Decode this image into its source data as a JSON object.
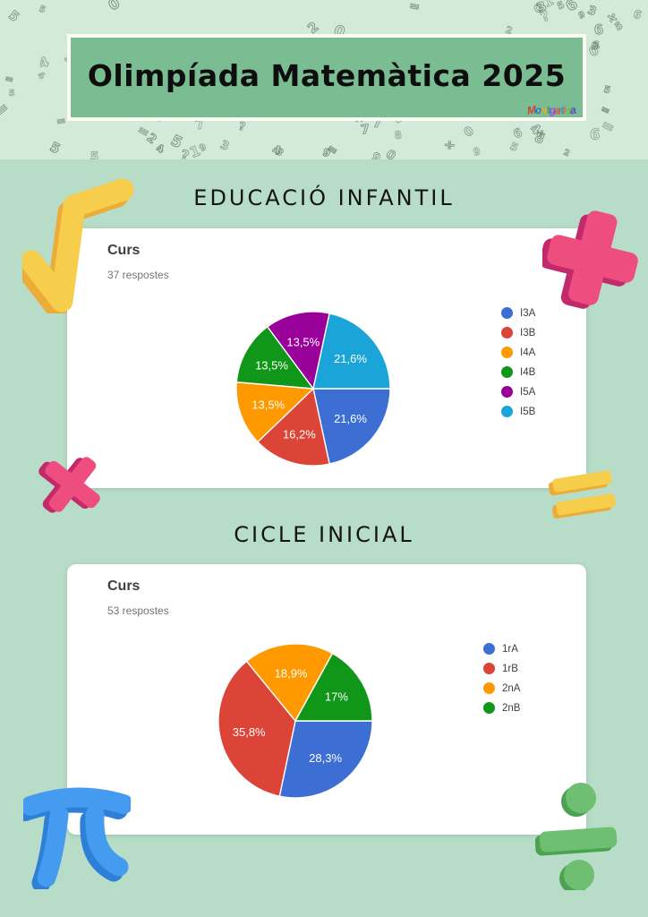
{
  "palette": {
    "page_background": "#b7dcc8",
    "pattern_band_background": "#d3ead8",
    "pattern_ink": "#61766a",
    "banner_green": "#7bbd92",
    "banner_border": "#fcfcf4",
    "card_background": "#ffffff",
    "accent_yellow": "#f7ce4b",
    "accent_yellow_dark": "#ecac38",
    "accent_pink": "#ed4e7f",
    "accent_pink_dark": "#c12a6b",
    "accent_blue": "#459bf0",
    "accent_blue_dark": "#2e7fd8",
    "accent_green": "#6ebf72",
    "accent_green_dark": "#4ba351"
  },
  "banner": {
    "title": "Olimpíada Matemàtica 2025",
    "logo_text": "Montgatina",
    "logo_colors": [
      "#d23f31",
      "#1a73e8",
      "#f6a80b",
      "#34a853",
      "#a142f4",
      "#e8453c",
      "#12a5d8",
      "#f6554e",
      "#7cb342",
      "#5b3fd1"
    ]
  },
  "pattern": {
    "glyphs": [
      "0",
      "1",
      "2",
      "3",
      "4",
      "5",
      "6",
      "7",
      "8",
      "9",
      "?",
      "÷",
      "="
    ]
  },
  "sections": [
    {
      "title": "EDUCACIÓ INFANTIL"
    },
    {
      "title": "CICLE INICIAL"
    }
  ],
  "chart_data": [
    {
      "type": "pie",
      "title": "Curs",
      "subtitle": "37 respostes",
      "labels": [
        "I3A",
        "I3B",
        "I4A",
        "I4B",
        "I5A",
        "I5B"
      ],
      "values": [
        21.6,
        16.2,
        13.5,
        13.5,
        13.5,
        21.6
      ],
      "value_labels": [
        "21,6%",
        "16,2%",
        "13,5%",
        "13,5%",
        "13,5%",
        "21,6%"
      ],
      "colors": [
        "#3c6ed4",
        "#db4437",
        "#ff9900",
        "#109618",
        "#990099",
        "#1aa4d8"
      ],
      "legend_position": "right",
      "start_angle_deg": 0,
      "direction": "clockwise"
    },
    {
      "type": "pie",
      "title": "Curs",
      "subtitle": "53 respostes",
      "labels": [
        "1rA",
        "1rB",
        "2nA",
        "2nB"
      ],
      "values": [
        28.3,
        35.8,
        18.9,
        17
      ],
      "value_labels": [
        "28,3%",
        "35,8%",
        "18,9%",
        "17%"
      ],
      "colors": [
        "#3c6ed4",
        "#db4437",
        "#ff9900",
        "#109618"
      ],
      "legend_position": "right",
      "start_angle_deg": 0,
      "direction": "clockwise"
    }
  ]
}
